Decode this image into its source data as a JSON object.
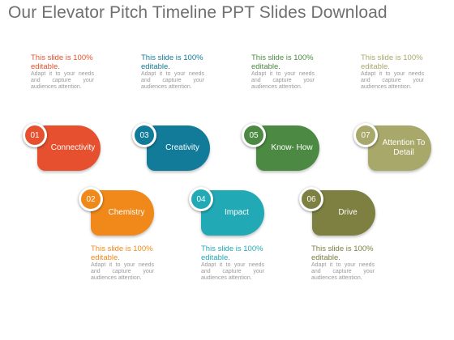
{
  "title": "Our Elevator Pitch Timeline PPT Slides Download",
  "steps": [
    {
      "num": "01",
      "label": "Connectivity",
      "color": "#e6502e",
      "headline": "This slide is 100% editable.",
      "body": "Adapt it to your needs and capture your audiences attention."
    },
    {
      "num": "02",
      "label": "Chemistry",
      "color": "#f0891a",
      "headline": "This slide is 100% editable.",
      "body": "Adapt it to your needs and capture your audiences attention."
    },
    {
      "num": "03",
      "label": "Creativity",
      "color": "#137b9a",
      "headline": "This slide is 100% editable.",
      "body": "Adapt it to your needs and capture your audiences attention."
    },
    {
      "num": "04",
      "label": "Impact",
      "color": "#22a9b6",
      "headline": "This slide is 100% editable.",
      "body": "Adapt it to your needs and capture your audiences attention."
    },
    {
      "num": "05",
      "label": "Know- How",
      "color": "#4c8a43",
      "headline": "This slide is 100% editable.",
      "body": "Adapt it to your needs and capture your audiences attention."
    },
    {
      "num": "06",
      "label": "Drive",
      "color": "#7d8040",
      "headline": "This slide is 100% editable.",
      "body": "Adapt it to your needs and capture your audiences attention."
    },
    {
      "num": "07",
      "label": "Attention To Detail",
      "color": "#a8a86a",
      "headline": "This slide is 100% editable.",
      "body": "Adapt it to your needs and capture your audiences attention."
    }
  ]
}
